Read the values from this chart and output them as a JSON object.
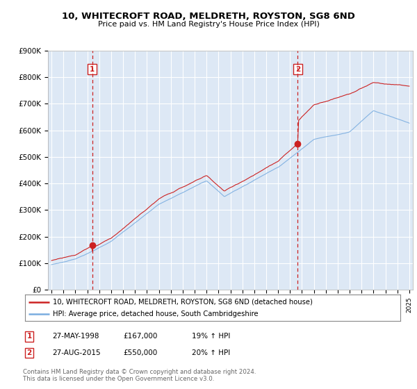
{
  "title": "10, WHITECROFT ROAD, MELDRETH, ROYSTON, SG8 6ND",
  "subtitle": "Price paid vs. HM Land Registry's House Price Index (HPI)",
  "legend_line1": "10, WHITECROFT ROAD, MELDRETH, ROYSTON, SG8 6ND (detached house)",
  "legend_line2": "HPI: Average price, detached house, South Cambridgeshire",
  "sale1_date": "27-MAY-1998",
  "sale1_price": "£167,000",
  "sale1_hpi": "19% ↑ HPI",
  "sale2_date": "27-AUG-2015",
  "sale2_price": "£550,000",
  "sale2_hpi": "20% ↑ HPI",
  "footnote": "Contains HM Land Registry data © Crown copyright and database right 2024.\nThis data is licensed under the Open Government Licence v3.0.",
  "sale1_x": 1998.41,
  "sale1_y": 167000,
  "sale2_x": 2015.65,
  "sale2_y": 550000,
  "hpi_color": "#7aade0",
  "sale_color": "#cc2222",
  "vline_color": "#cc2222",
  "chart_bg": "#dde8f5",
  "background_color": "#ffffff",
  "grid_color": "#ffffff",
  "ylim": [
    0,
    900000
  ],
  "xlim_start": 1994.7,
  "xlim_end": 2025.3
}
